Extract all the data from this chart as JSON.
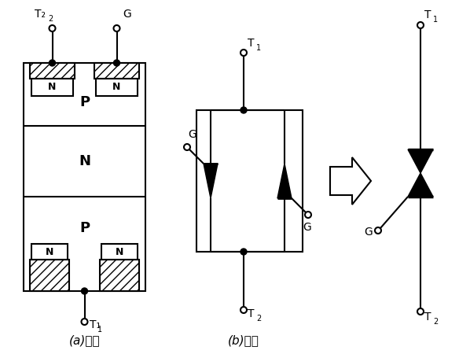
{
  "bg_color": "#ffffff",
  "line_color": "#000000",
  "title_a": "(a)结构",
  "title_b": "(b)电路",
  "label_T1_a_top": "T₂",
  "label_G_a": "G",
  "label_T1_a_bot": "T₁",
  "label_T1_b_top": "T₁",
  "label_T2_b_bot": "T₂",
  "label_G_b1": "G",
  "label_G_b2": "G",
  "label_T1_c": "T₁",
  "label_T2_c": "T₂",
  "label_G_c": "G"
}
